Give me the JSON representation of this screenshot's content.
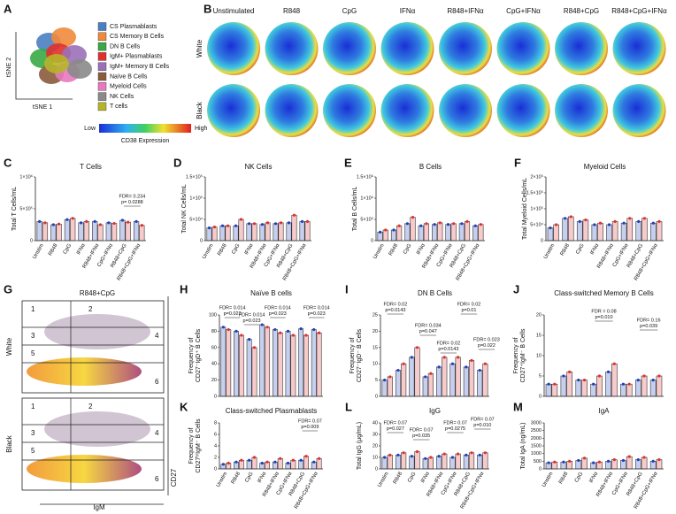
{
  "panels": {
    "A": {
      "letter": "A",
      "xlabel": "tSNE 1",
      "ylabel": "tSNE 2",
      "legend": [
        {
          "label": "CS Plasmablasts",
          "color": "#4a7fc1"
        },
        {
          "label": "CS Memory B Cells",
          "color": "#f08a3c"
        },
        {
          "label": "DN B Cells",
          "color": "#3aa845"
        },
        {
          "label": "IgM+ Plasmablasts",
          "color": "#e0302e"
        },
        {
          "label": "IgM+ Memory B Cells",
          "color": "#9a70b8"
        },
        {
          "label": "Naïve B Cells",
          "color": "#8b5a3c"
        },
        {
          "label": "Myeloid Cells",
          "color": "#e879c0"
        },
        {
          "label": "NK Cells",
          "color": "#8a8a8a"
        },
        {
          "label": "T cells",
          "color": "#b5b52a"
        }
      ],
      "colorbar": {
        "low": "Low",
        "high": "High",
        "label": "CD38 Expression"
      }
    },
    "B": {
      "letter": "B",
      "columns": [
        "Unstimulated",
        "R848",
        "CpG",
        "IFNα",
        "R848+IFNα",
        "CpG+IFNα",
        "R848+CpG",
        "R848+CpG+IFNα"
      ],
      "rows": [
        "White",
        "Black"
      ]
    },
    "G": {
      "letter": "G",
      "title": "R848+CpG",
      "rows": [
        "White",
        "Black"
      ],
      "gates": [
        "1",
        "2",
        "3",
        "4",
        "5",
        "6"
      ],
      "xlabel": "IgM",
      "ylabel": "CD27"
    }
  },
  "chart_data": [
    {
      "type": "bar",
      "letter": "C",
      "title": "T Cells",
      "ylabel": [
        "Total  T Cells/mL"
      ],
      "categories": [
        "Unstim",
        "R848",
        "CpG",
        "IFNα",
        "R848+IFNα",
        "CpG+IFNα",
        "R848+CpG",
        "R848+CpG+IFNα"
      ],
      "series": [
        {
          "color": "#1f3fbf",
          "values": [
            300000,
            250000,
            330000,
            280000,
            300000,
            280000,
            320000,
            300000
          ]
        },
        {
          "color": "#e0302e",
          "values": [
            280000,
            260000,
            350000,
            300000,
            250000,
            270000,
            290000,
            240000
          ]
        }
      ],
      "ylim": [
        0,
        1000000
      ],
      "yticks": [
        0,
        {
          "value": 500000,
          "label": "5×10⁵"
        },
        {
          "value": 1000000,
          "label": "1×10⁶"
        }
      ],
      "annotations": [
        [
          "FDR= 0.234",
          "p= 0.0288"
        ]
      ]
    },
    {
      "type": "bar",
      "letter": "D",
      "title": "NK Cells",
      "ylabel": [
        "Total NK Cells/mL"
      ],
      "categories": [
        "Unstim",
        "R848",
        "CpG",
        "IFNα",
        "R848+IFNα",
        "CpG+IFNα",
        "R848+CpG",
        "R848+CpG+IFNα"
      ],
      "series": [
        {
          "color": "#1f3fbf",
          "values": [
            30000,
            35000,
            35000,
            40000,
            38000,
            40000,
            42000,
            45000
          ]
        },
        {
          "color": "#e0302e",
          "values": [
            32000,
            35000,
            50000,
            40000,
            42000,
            42000,
            60000,
            45000
          ]
        }
      ],
      "ylim": [
        0,
        150000
      ],
      "yticks": [
        0,
        {
          "value": 50000,
          "label": "5×10⁴"
        },
        {
          "value": 100000,
          "label": "1×10⁵"
        },
        {
          "value": 150000,
          "label": "1.5×10⁵"
        }
      ],
      "annotations": []
    },
    {
      "type": "bar",
      "letter": "E",
      "title": "B Cells",
      "ylabel": [
        "Total B Cells/mL"
      ],
      "categories": [
        "Unstim",
        "R848",
        "CpG",
        "IFNα",
        "R848+IFNα",
        "CpG+IFNα",
        "R848+CpG",
        "R848+CpG+IFNα"
      ],
      "series": [
        {
          "color": "#1f3fbf",
          "values": [
            200000,
            250000,
            400000,
            350000,
            380000,
            380000,
            400000,
            350000
          ]
        },
        {
          "color": "#e0302e",
          "values": [
            250000,
            350000,
            550000,
            400000,
            420000,
            400000,
            450000,
            380000
          ]
        }
      ],
      "ylim": [
        0,
        1500000
      ],
      "yticks": [
        0,
        {
          "value": 500000,
          "label": "5×10⁵"
        },
        {
          "value": 1000000,
          "label": "1×10⁶"
        },
        {
          "value": 1500000,
          "label": "1.5×10⁶"
        }
      ],
      "annotations": []
    },
    {
      "type": "bar",
      "letter": "F",
      "title": "Myeloid Cells",
      "ylabel": [
        "Total Myeloid Cells/mL"
      ],
      "categories": [
        "Unstim",
        "R848",
        "CpG",
        "IFNα",
        "R848+IFNα",
        "CpG+IFNα",
        "R848+CpG",
        "R848+CpG+IFNα"
      ],
      "series": [
        {
          "color": "#1f3fbf",
          "values": [
            40000,
            70000,
            60000,
            50000,
            50000,
            55000,
            60000,
            55000
          ]
        },
        {
          "color": "#e0302e",
          "values": [
            50000,
            75000,
            65000,
            55000,
            60000,
            70000,
            70000,
            60000
          ]
        }
      ],
      "ylim": [
        0,
        200000
      ],
      "yticks": [
        0,
        {
          "value": 50000,
          "label": "5×10⁴"
        },
        {
          "value": 100000,
          "label": "1×10⁵"
        },
        {
          "value": 150000,
          "label": "1.5×10⁵"
        },
        {
          "value": 200000,
          "label": "2×10⁵"
        }
      ],
      "annotations": []
    },
    {
      "type": "bar",
      "letter": "H",
      "title": "Naïve B cells",
      "ylabel": [
        "Frequency of",
        "CD27⁻IgD⁺ B Cells"
      ],
      "series": [
        {
          "color": "#1f3fbf",
          "values": [
            85,
            80,
            70,
            88,
            82,
            80,
            83,
            82
          ]
        },
        {
          "color": "#e0302e",
          "values": [
            82,
            75,
            60,
            85,
            78,
            75,
            75,
            78
          ]
        }
      ],
      "ylim": [
        0,
        100
      ],
      "yticks": [
        0,
        20,
        40,
        60,
        80,
        100
      ],
      "annotations": [
        [
          "FDR= 0.014",
          "p=0.023"
        ],
        [
          "FDR= 0.014",
          "p=0.023"
        ],
        [
          "FDR= 0.014",
          "p=0.023"
        ],
        [
          "FDR= 0.014",
          "p=0.023"
        ]
      ]
    },
    {
      "type": "bar",
      "letter": "I",
      "title": "DN B Cells",
      "ylabel": [
        "Frequency of",
        "CD27⁻IgD⁻ B Cells"
      ],
      "series": [
        {
          "color": "#1f3fbf",
          "values": [
            5,
            8,
            12,
            6,
            9,
            10,
            9,
            8
          ]
        },
        {
          "color": "#e0302e",
          "values": [
            6,
            10,
            15,
            7,
            12,
            12,
            11,
            10
          ]
        }
      ],
      "ylim": [
        0,
        25
      ],
      "yticks": [
        0,
        5,
        10,
        15,
        20,
        25
      ],
      "annotations": [
        [
          "FDR= 0.02",
          "p=0.0143"
        ],
        [
          "FDR= 0.034",
          "p=0.047"
        ],
        [
          "FDR= 0.02",
          "p=0.0143"
        ],
        [
          "FDR= 0.02",
          "p=0.01"
        ],
        [
          "FDR= 0.023",
          "p=0.022"
        ]
      ]
    },
    {
      "type": "bar",
      "letter": "J",
      "title": "Class-switched Memory B Cells",
      "ylabel": [
        "Frequency of",
        "CD27⁺IgM⁻ B Cells"
      ],
      "series": [
        {
          "color": "#1f3fbf",
          "values": [
            3,
            5,
            4,
            3,
            6,
            3,
            4,
            4
          ]
        },
        {
          "color": "#e0302e",
          "values": [
            3,
            6,
            4,
            5,
            8,
            3,
            5,
            5
          ]
        }
      ],
      "ylim": [
        0,
        20
      ],
      "yticks": [
        0,
        5,
        10,
        15,
        20
      ],
      "annotations": [
        [
          "FDR = 0.08",
          "p=0.010"
        ],
        [
          "FDR= 0.16",
          "p=0.039"
        ]
      ]
    },
    {
      "type": "bar",
      "letter": "K",
      "title": "Class-switched Plasmablasts",
      "ylabel": [
        "Frequency of",
        "CD27ʰⁱIgM⁻ B Cells"
      ],
      "categories": [
        "Unstim",
        "R848",
        "CpG",
        "IFNα",
        "R848+IFNα",
        "CpG+IFNα",
        "R848+CpG",
        "R848+CpG+IFNα"
      ],
      "series": [
        {
          "color": "#1f3fbf",
          "values": [
            0.8,
            1.2,
            1.5,
            1,
            1.2,
            1,
            1.5,
            1.2
          ]
        },
        {
          "color": "#e0302e",
          "values": [
            1,
            1.5,
            2,
            1.2,
            1.8,
            1.5,
            2.2,
            1.8
          ]
        }
      ],
      "ylim": [
        0,
        8
      ],
      "yticks": [
        0,
        2,
        4,
        6,
        8
      ],
      "annotations": [
        [
          "FDR= 0.07",
          "p=0.009"
        ]
      ]
    },
    {
      "type": "bar",
      "letter": "L",
      "title": "IgG",
      "ylabel": [
        "Total IgG (μg/mL)"
      ],
      "categories": [
        "Unstim",
        "R848",
        "CpG",
        "IFNα",
        "R848+IFNα",
        "CpG+IFNα",
        "R848+CpG",
        "R848+CpG+IFNα"
      ],
      "series": [
        {
          "color": "#1f3fbf",
          "values": [
            10,
            12,
            11,
            9,
            11,
            10,
            12,
            12
          ]
        },
        {
          "color": "#e0302e",
          "values": [
            12,
            14,
            15,
            10,
            13,
            13,
            14,
            14
          ]
        }
      ],
      "ylim": [
        0,
        40
      ],
      "yticks": [
        0,
        10,
        20,
        30,
        40
      ],
      "annotations": [
        [
          "FDR= 0.07",
          "p=0.027"
        ],
        [
          "FDR= 0.07",
          "p=0.035"
        ],
        [
          "FDR= 0.07",
          "p=0.0275"
        ],
        [
          "FDR= 0.07",
          "p=0.010"
        ]
      ]
    },
    {
      "type": "bar",
      "letter": "M",
      "title": "IgA",
      "ylabel": [
        "Total IgA (ng/mL)"
      ],
      "categories": [
        "Unstim",
        "R848",
        "CpG",
        "IFNα",
        "R848+IFNα",
        "CpG+IFNα",
        "R848+CpG",
        "R848+CpG+IFNα"
      ],
      "series": [
        {
          "color": "#1f3fbf",
          "values": [
            400,
            450,
            550,
            400,
            500,
            550,
            600,
            500
          ]
        },
        {
          "color": "#e0302e",
          "values": [
            450,
            500,
            700,
            450,
            600,
            800,
            750,
            600
          ]
        }
      ],
      "ylim": [
        0,
        3000
      ],
      "yticks": [
        0,
        500,
        1000,
        1500,
        2000,
        2500,
        3000
      ],
      "annotations": []
    }
  ]
}
